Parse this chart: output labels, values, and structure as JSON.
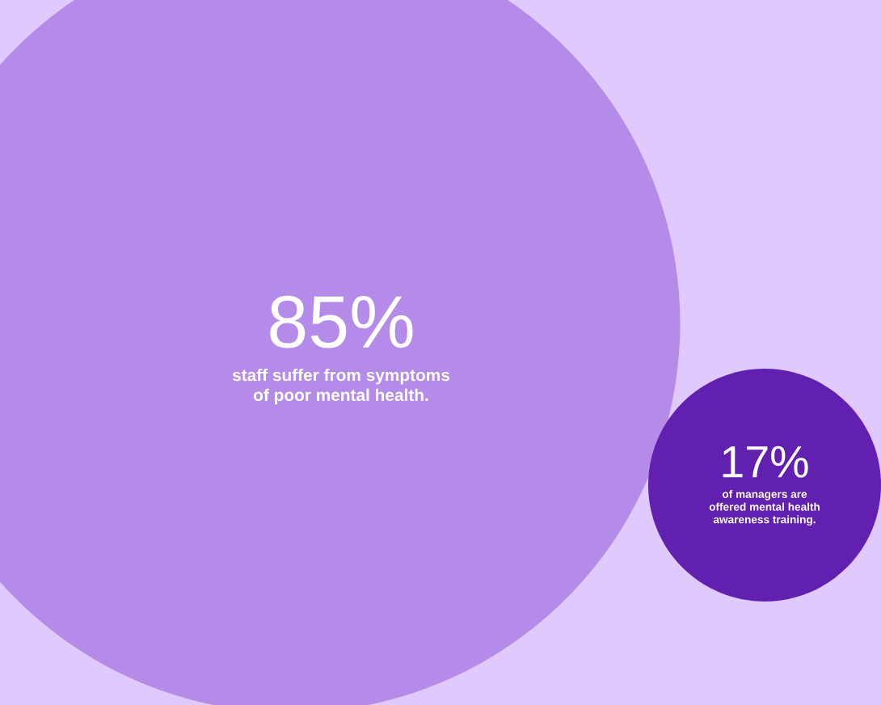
{
  "chart_data": {
    "type": "other",
    "categories": [
      "staff suffer from symptoms\nof poor mental health.",
      "of managers are\noffered mental health\nawareness training."
    ],
    "values": [
      85,
      17
    ],
    "value_labels": [
      "85%",
      "17%"
    ],
    "colors": [
      "#b48be9",
      "#6220b0"
    ]
  }
}
